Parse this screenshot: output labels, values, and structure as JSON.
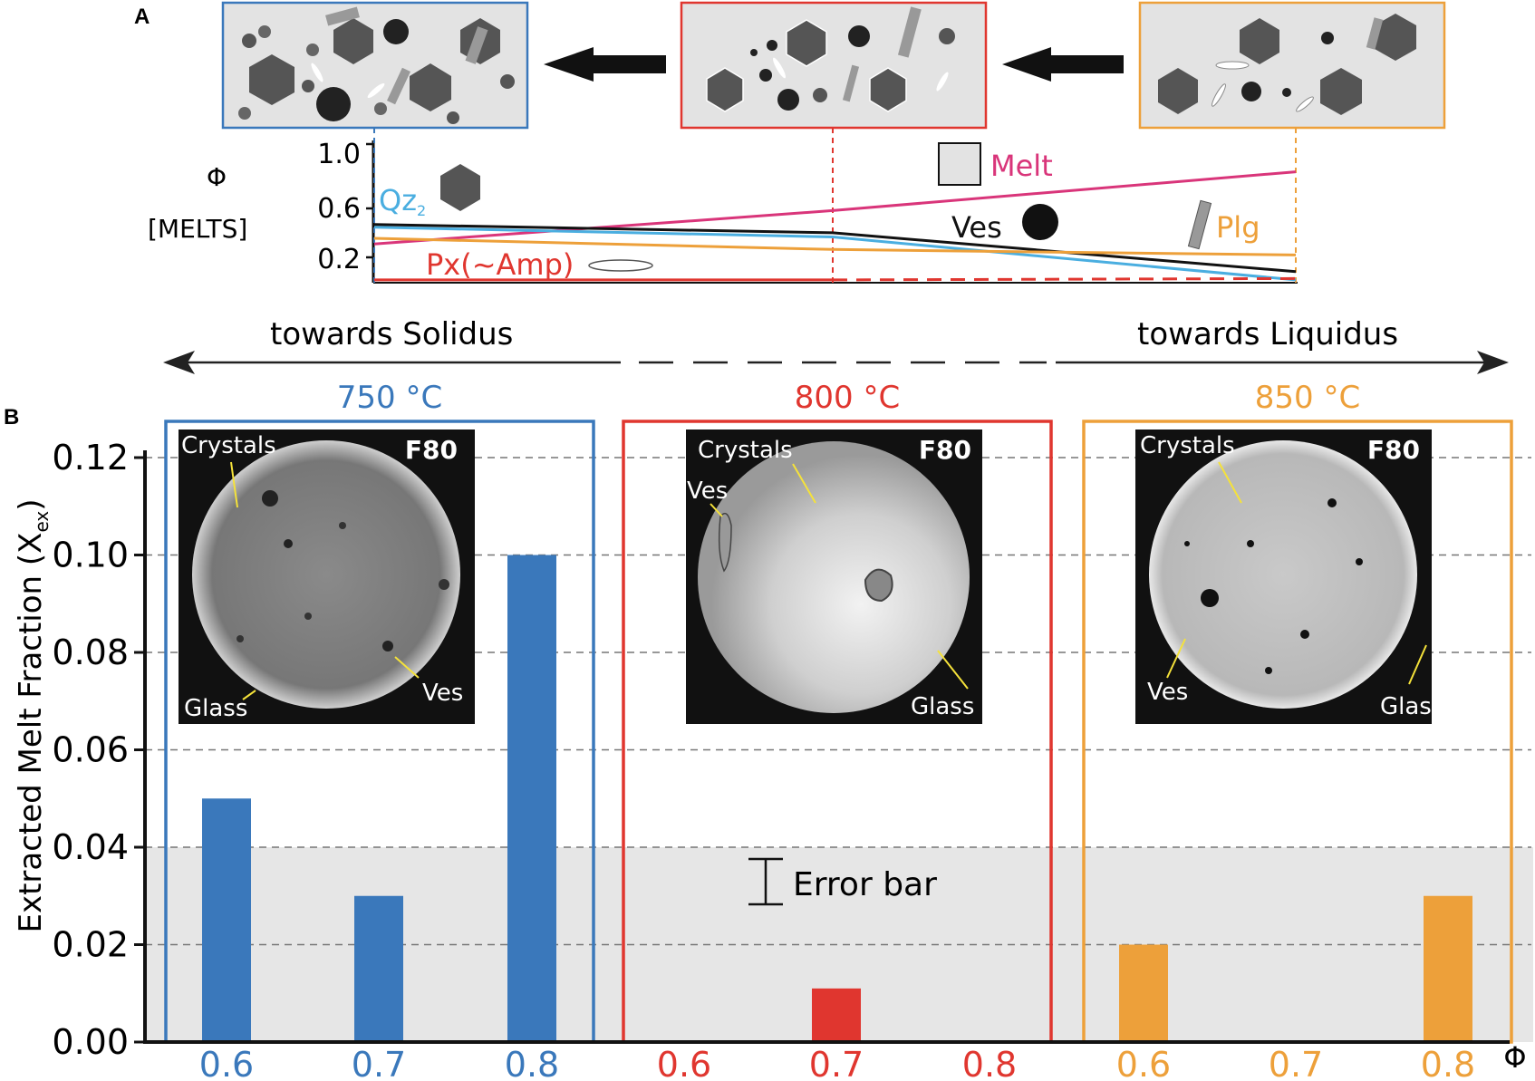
{
  "panel_a": {
    "letter": "A",
    "phi_symbol": "Φ",
    "phi_unit": "[MELTS]",
    "yticks": [
      "1.0",
      "0.6",
      "0.2"
    ],
    "labels": {
      "melt": "Melt",
      "qz": "Qz",
      "qz_sub": "2",
      "ves": "Ves",
      "plg": "Plg",
      "px": "Px(~Amp)"
    },
    "direction_left": "towards Solidus",
    "direction_right": "towards Liquidus"
  },
  "panel_b": {
    "letter": "B",
    "temperatures": [
      "750 °C",
      "800 °C",
      "850 °C"
    ],
    "error_bar_label": "Error bar",
    "images": [
      {
        "id": "F80",
        "labels": [
          "Crystals",
          "Glass",
          "Ves"
        ]
      },
      {
        "id": "F80",
        "labels": [
          "Crystals",
          "Ves",
          "Glass"
        ]
      },
      {
        "id": "F80",
        "labels": [
          "Crystals",
          "Ves",
          "Glass"
        ]
      }
    ]
  },
  "colors": {
    "blue": "#3a78bb",
    "red": "#e0362f",
    "orange": "#eda03a",
    "pink": "#d9357a",
    "light_blue": "#4aaee0",
    "black": "#111111",
    "grey_band": "#e6e6e6"
  },
  "chart_data": [
    {
      "type": "line",
      "panel": "A",
      "xlabel": "",
      "ylabel": "Φ [MELTS]",
      "ylim": [
        0,
        1.1
      ],
      "x": [
        750,
        800,
        850
      ],
      "series": [
        {
          "name": "Melt",
          "color": "#d9357a",
          "values": [
            0.28,
            0.52,
            0.8
          ]
        },
        {
          "name": "Qz",
          "color": "#4aaee0",
          "values": [
            0.4,
            0.33,
            0.02
          ]
        },
        {
          "name": "Ves",
          "color": "#111111",
          "values": [
            0.42,
            0.36,
            0.08
          ]
        },
        {
          "name": "Plg",
          "color": "#eda03a",
          "values": [
            0.32,
            0.24,
            0.2
          ]
        },
        {
          "name": "Px(~Amp)",
          "color": "#e0362f",
          "values": [
            0.02,
            0.02,
            0.03
          ]
        }
      ]
    },
    {
      "type": "bar",
      "panel": "B",
      "xlabel": "Φ",
      "ylabel": "Extracted Melt Fraction (X",
      "ylabel_sub": "ex",
      "ylabel_end": ")",
      "ylim": [
        0,
        0.12
      ],
      "yticks": [
        "0.00",
        "0.02",
        "0.04",
        "0.06",
        "0.08",
        "0.10",
        "0.12"
      ],
      "grid": true,
      "error_band": [
        0,
        0.04
      ],
      "groups": [
        {
          "name": "750 °C",
          "color": "#3a78bb",
          "categories": [
            "0.6",
            "0.7",
            "0.8"
          ],
          "values": [
            0.05,
            0.03,
            0.1
          ]
        },
        {
          "name": "800 °C",
          "color": "#e0362f",
          "categories": [
            "0.6",
            "0.7",
            "0.8"
          ],
          "values": [
            0,
            0.011,
            0
          ]
        },
        {
          "name": "850 °C",
          "color": "#eda03a",
          "categories": [
            "0.6",
            "0.7",
            "0.8"
          ],
          "values": [
            0.02,
            0,
            0.03
          ]
        }
      ]
    }
  ]
}
